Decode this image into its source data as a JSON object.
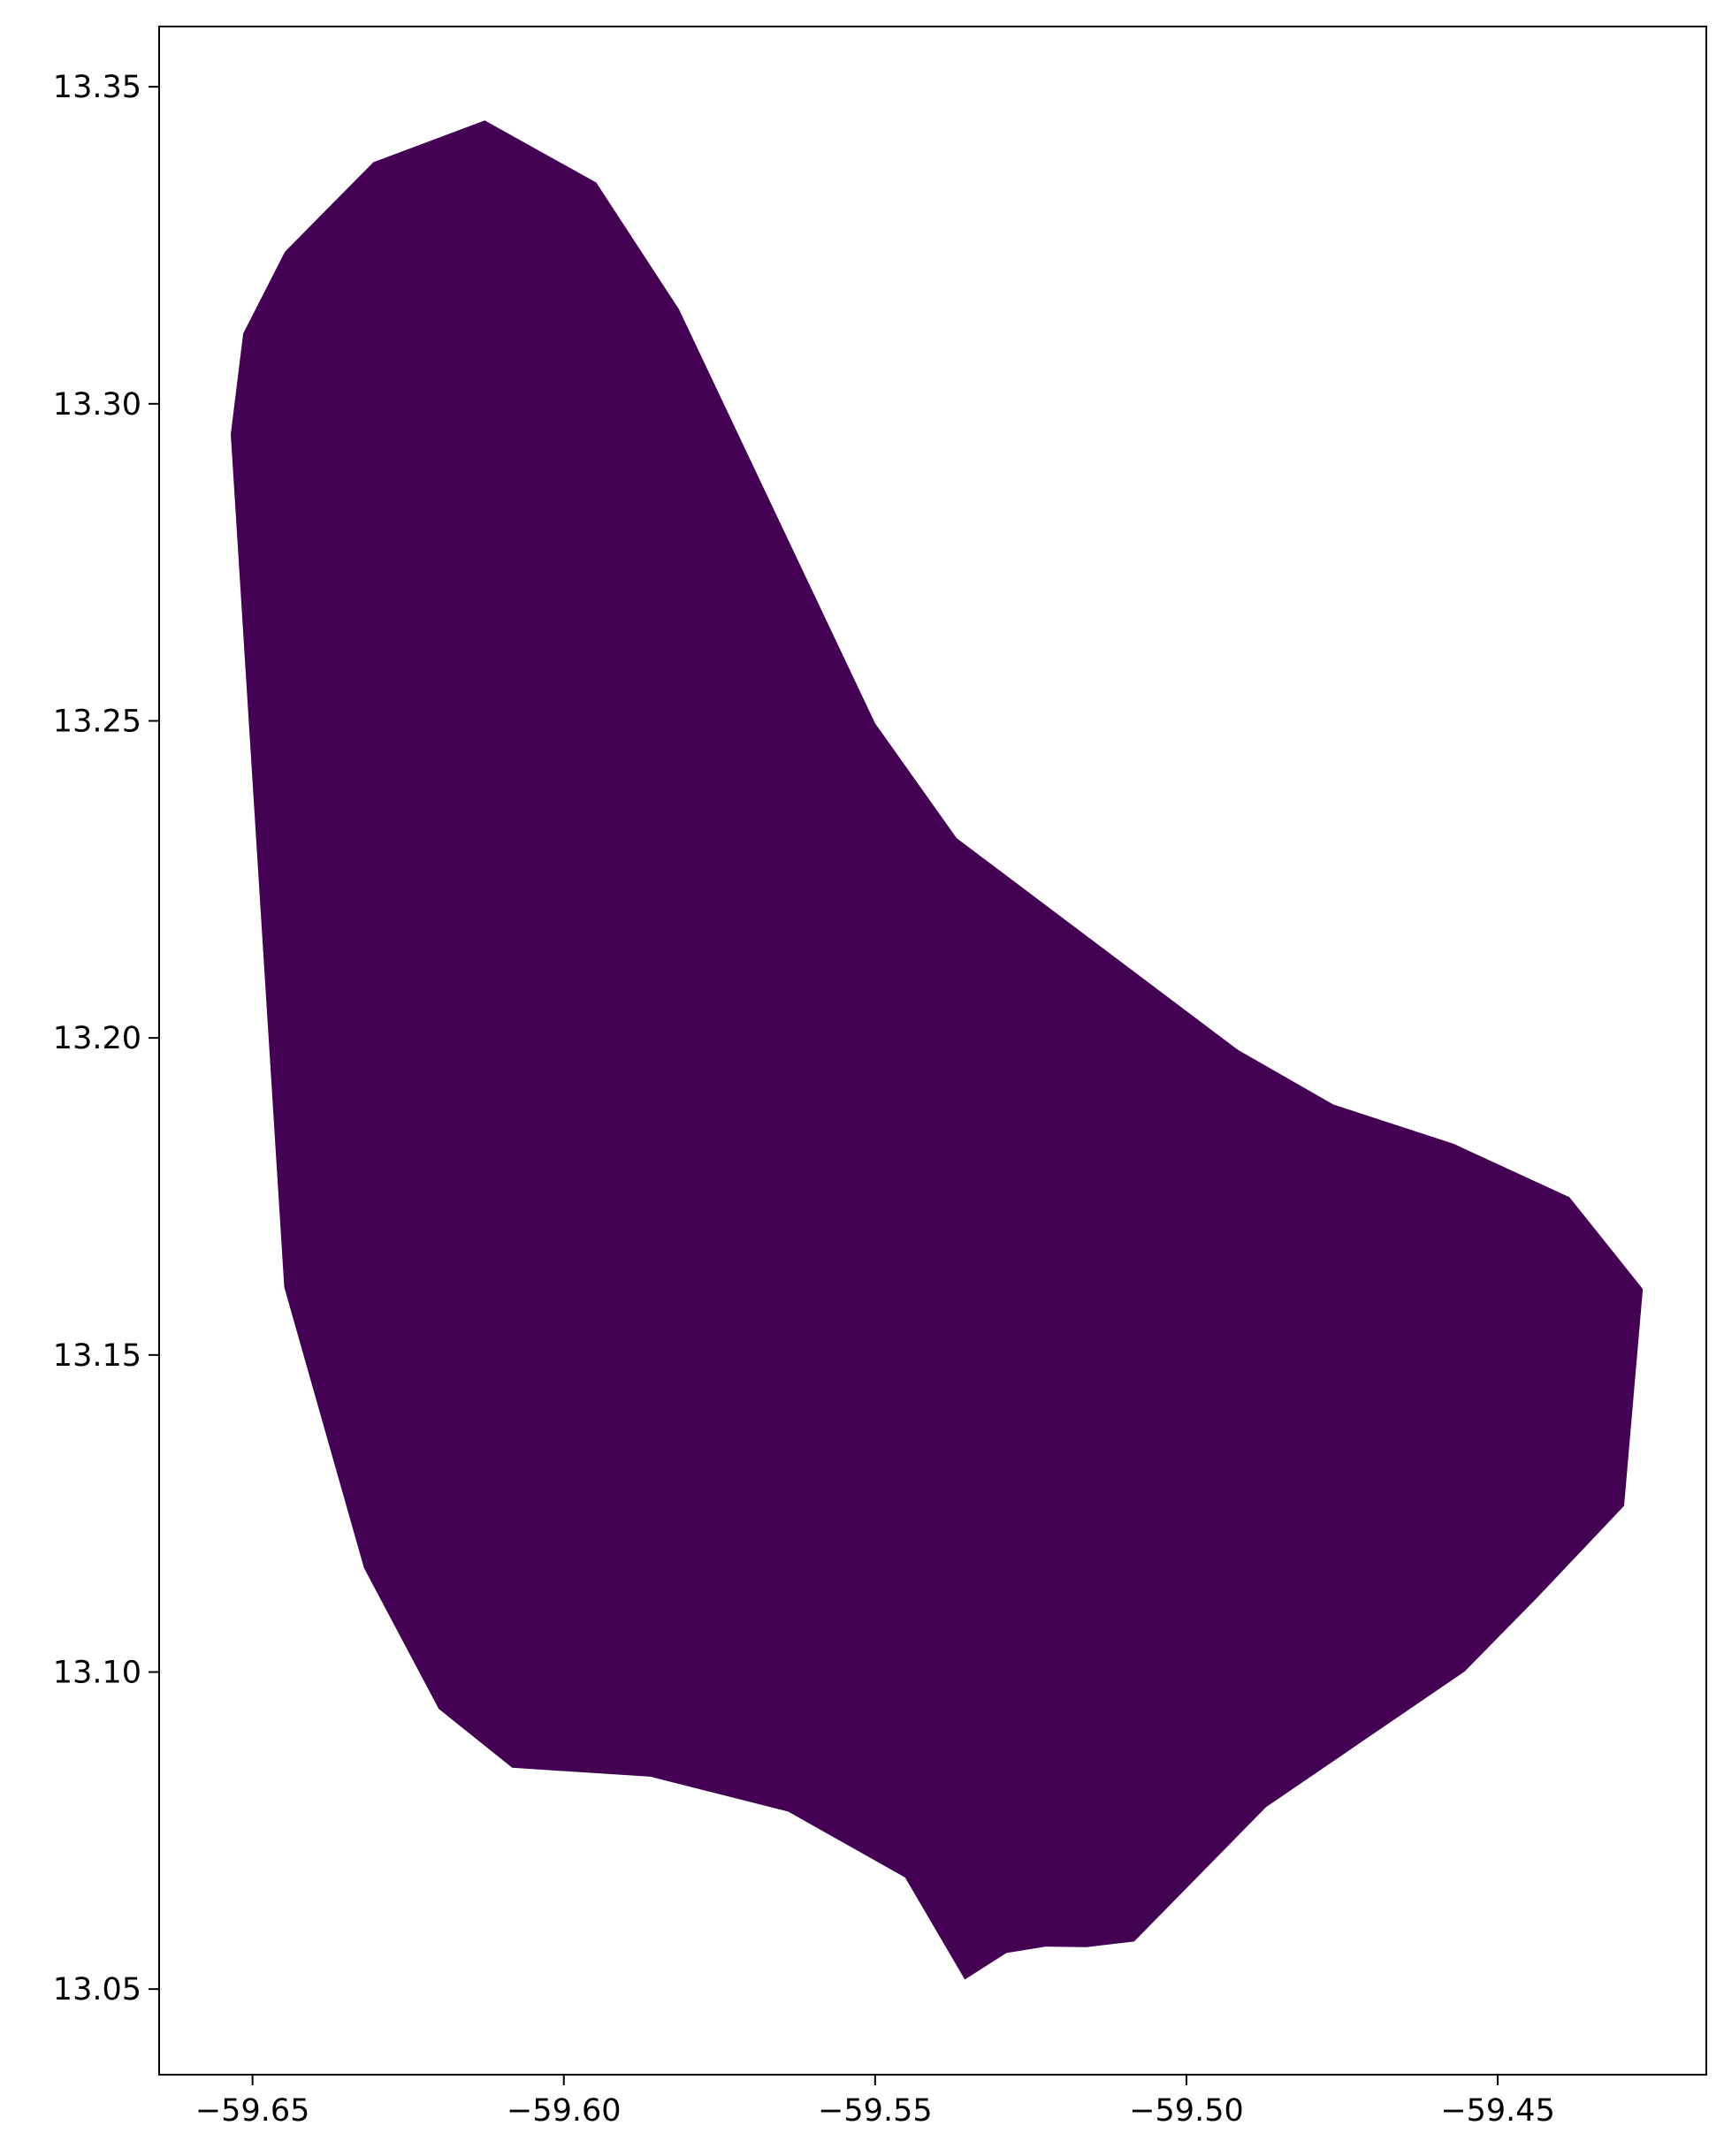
{
  "chart_data": {
    "type": "map",
    "title": "",
    "xlabel": "",
    "ylabel": "",
    "xlim": [
      -59.665,
      -59.4165
    ],
    "ylim": [
      13.0365,
      13.3595
    ],
    "x_ticks": [
      "−59.65",
      "−59.60",
      "−59.55",
      "−59.50",
      "−59.45"
    ],
    "x_tick_values": [
      -59.65,
      -59.6,
      -59.55,
      -59.5,
      -59.45
    ],
    "y_ticks": [
      "13.05",
      "13.10",
      "13.15",
      "13.20",
      "13.25",
      "13.30",
      "13.35"
    ],
    "y_tick_values": [
      13.05,
      13.1,
      13.15,
      13.2,
      13.25,
      13.3,
      13.35
    ],
    "fill_color": "#440154",
    "grid": false,
    "polygon": [
      [
        -59.6535,
        13.2952
      ],
      [
        -59.6515,
        13.3111
      ],
      [
        -59.6448,
        13.324
      ],
      [
        -59.6306,
        13.3381
      ],
      [
        -59.6127,
        13.3447
      ],
      [
        -59.5948,
        13.3349
      ],
      [
        -59.5815,
        13.3149
      ],
      [
        -59.55,
        13.2496
      ],
      [
        -59.5369,
        13.2315
      ],
      [
        -59.4917,
        13.1981
      ],
      [
        -59.4764,
        13.1895
      ],
      [
        -59.4571,
        13.1833
      ],
      [
        -59.4385,
        13.1749
      ],
      [
        -59.4267,
        13.1604
      ],
      [
        -59.4297,
        13.1262
      ],
      [
        -59.4435,
        13.1119
      ],
      [
        -59.4553,
        13.1001
      ],
      [
        -59.4872,
        13.0787
      ],
      [
        -59.5084,
        13.0575
      ],
      [
        -59.5161,
        13.0566
      ],
      [
        -59.5226,
        13.0567
      ],
      [
        -59.5289,
        13.0557
      ],
      [
        -59.5356,
        13.0515
      ],
      [
        -59.5452,
        13.0676
      ],
      [
        -59.564,
        13.078
      ],
      [
        -59.5861,
        13.0835
      ],
      [
        -59.6083,
        13.0849
      ],
      [
        -59.6201,
        13.0942
      ],
      [
        -59.6321,
        13.1164
      ],
      [
        -59.6449,
        13.1607
      ]
    ]
  }
}
